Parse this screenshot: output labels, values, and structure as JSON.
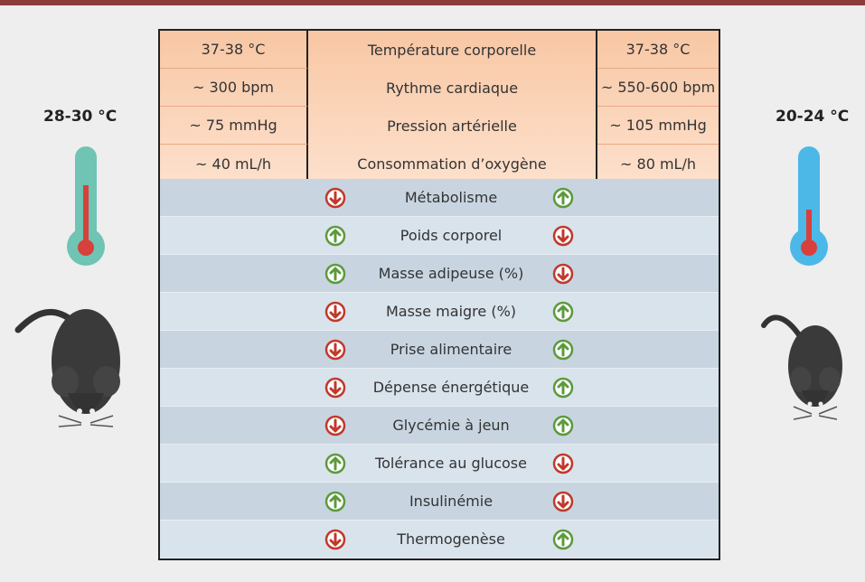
{
  "left_temperature": "28-30 °C",
  "right_temperature": "20-24 °C",
  "top_table": {
    "rows": [
      [
        "37-38 °C",
        "Température corporelle",
        "37-38 °C"
      ],
      [
        "~ 300 bpm",
        "Rythme cardiaque",
        "~ 550-600 bpm"
      ],
      [
        "~ 75 mmHg",
        "Pression artérielle",
        "~ 105 mmHg"
      ],
      [
        "~ 40 mL/h",
        "Consommation d’oxygène",
        "~ 80 mL/h"
      ]
    ]
  },
  "bottom_table": {
    "rows": [
      "Métabolisme",
      "Poids corporel",
      "Masse adipeuse (%)",
      "Masse maigre (%)",
      "Prise alimentaire",
      "Dépense énergétique",
      "Glycémie à jeun",
      "Tolérance au glucose",
      "Insulinémie",
      "Thermogenèse"
    ]
  }
}
